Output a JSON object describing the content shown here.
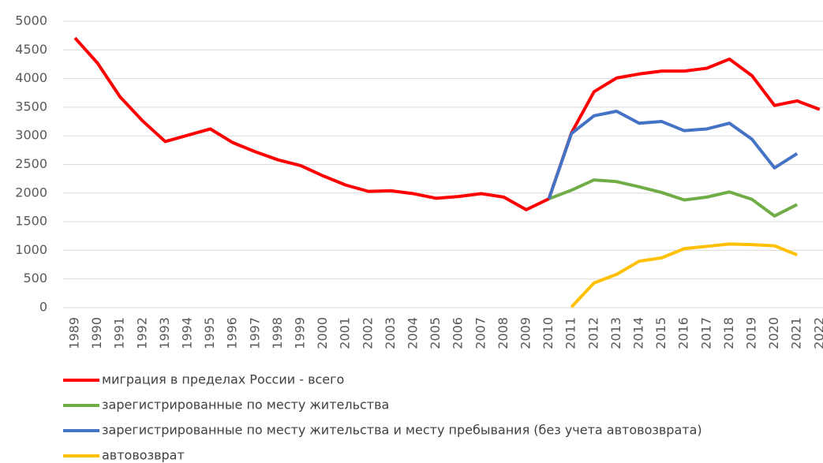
{
  "chart_data": {
    "type": "line",
    "categories": [
      "1989",
      "1990",
      "1991",
      "1992",
      "1993",
      "1994",
      "1995",
      "1996",
      "1997",
      "1998",
      "1999",
      "2000",
      "2001",
      "2002",
      "2003",
      "2004",
      "2005",
      "2006",
      "2007",
      "2008",
      "2009",
      "2010",
      "2011",
      "2012",
      "2013",
      "2014",
      "2015",
      "2016",
      "2017",
      "2018",
      "2019",
      "2020",
      "2021",
      "2022"
    ],
    "series": [
      {
        "name": "миграция в пределах России - всего",
        "color": "#ff0000",
        "values": [
          4710,
          4270,
          3680,
          3260,
          2900,
          3010,
          3120,
          2880,
          2720,
          2580,
          2480,
          2300,
          2140,
          2030,
          2040,
          1990,
          1910,
          1940,
          1990,
          1930,
          1710,
          1900,
          3050,
          3770,
          4010,
          4080,
          4130,
          4130,
          4180,
          4340,
          4050,
          3530,
          3610,
          3460
        ]
      },
      {
        "name": "зарегистрированные по месту жительства",
        "color": "#70ad47",
        "values": [
          null,
          null,
          null,
          null,
          null,
          null,
          null,
          null,
          null,
          null,
          null,
          null,
          null,
          null,
          null,
          null,
          null,
          null,
          null,
          null,
          null,
          1900,
          2050,
          2230,
          2200,
          2110,
          2010,
          1880,
          1930,
          2020,
          1890,
          1600,
          1800,
          null
        ]
      },
      {
        "name": "зарегистрированные по месту жительства и месту пребывания (без учета автовозврата)",
        "color": "#4472c4",
        "values": [
          null,
          null,
          null,
          null,
          null,
          null,
          null,
          null,
          null,
          null,
          null,
          null,
          null,
          null,
          null,
          null,
          null,
          null,
          null,
          null,
          null,
          1900,
          3040,
          3350,
          3430,
          3220,
          3250,
          3090,
          3120,
          3220,
          2940,
          2440,
          2690,
          null
        ]
      },
      {
        "name": "автовозврат",
        "color": "#ffc000",
        "values": [
          null,
          null,
          null,
          null,
          null,
          null,
          null,
          null,
          null,
          null,
          null,
          null,
          null,
          null,
          null,
          null,
          null,
          null,
          null,
          null,
          null,
          null,
          10,
          430,
          580,
          810,
          870,
          1030,
          1070,
          1110,
          1100,
          1080,
          920,
          null
        ]
      }
    ],
    "ylim": [
      0,
      5000
    ],
    "yticks": [
      0,
      500,
      1000,
      1500,
      2000,
      2500,
      3000,
      3500,
      4000,
      4500,
      5000
    ],
    "grid": true,
    "legend": "bottom"
  }
}
